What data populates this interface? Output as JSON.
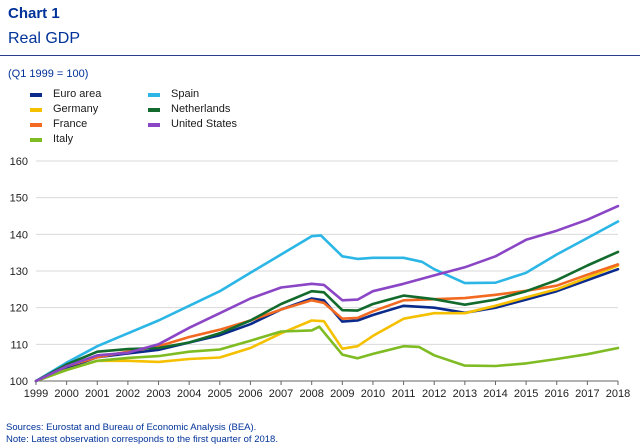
{
  "header": {
    "title": "Chart 1",
    "subtitle": "Real GDP",
    "unit_note": "(Q1 1999 = 100)"
  },
  "footer": {
    "sources": "Sources: Eurostat and Bureau of Economic Analysis (BEA).",
    "note": "Note: Latest observation corresponds to the first quarter of 2018."
  },
  "chart_data": {
    "type": "line",
    "xlim": [
      1999,
      2018
    ],
    "ylim": [
      100,
      160
    ],
    "x_ticks": [
      1999,
      2000,
      2001,
      2002,
      2003,
      2004,
      2005,
      2006,
      2007,
      2008,
      2009,
      2010,
      2011,
      2012,
      2013,
      2014,
      2015,
      2016,
      2017,
      2018
    ],
    "y_ticks": [
      100,
      110,
      120,
      130,
      140,
      150,
      160
    ],
    "grid": "horizontal",
    "legend_position": "top-left",
    "series": [
      {
        "name": "Euro area",
        "color": "#0a2a8c",
        "points": [
          [
            1999,
            100
          ],
          [
            2000,
            103.5
          ],
          [
            2001,
            106.5
          ],
          [
            2002,
            107.5
          ],
          [
            2003,
            108.5
          ],
          [
            2004,
            110.5
          ],
          [
            2005,
            112.5
          ],
          [
            2006,
            115.5
          ],
          [
            2007,
            119.5
          ],
          [
            2008,
            122.5
          ],
          [
            2008.4,
            122
          ],
          [
            2009,
            116.2
          ],
          [
            2009.5,
            116.5
          ],
          [
            2010,
            118
          ],
          [
            2011,
            120.5
          ],
          [
            2012,
            120
          ],
          [
            2013,
            118.6
          ],
          [
            2014,
            120
          ],
          [
            2015,
            122.2
          ],
          [
            2016,
            124.5
          ],
          [
            2017,
            127.5
          ],
          [
            2018,
            130.5
          ]
        ]
      },
      {
        "name": "Germany",
        "color": "#f5c000",
        "points": [
          [
            1999,
            100
          ],
          [
            2000,
            103
          ],
          [
            2001,
            105.5
          ],
          [
            2002,
            105.5
          ],
          [
            2003,
            105.2
          ],
          [
            2004,
            106
          ],
          [
            2005,
            106.4
          ],
          [
            2006,
            109
          ],
          [
            2007,
            113
          ],
          [
            2008,
            116.5
          ],
          [
            2008.4,
            116.3
          ],
          [
            2009,
            108.8
          ],
          [
            2009.5,
            109.5
          ],
          [
            2010,
            112.3
          ],
          [
            2011,
            117
          ],
          [
            2012,
            118.5
          ],
          [
            2013,
            118.5
          ],
          [
            2014,
            120.5
          ],
          [
            2015,
            122.8
          ],
          [
            2016,
            125
          ],
          [
            2017,
            128.2
          ],
          [
            2018,
            131.5
          ]
        ]
      },
      {
        "name": "France",
        "color": "#f26a21",
        "points": [
          [
            1999,
            100
          ],
          [
            2000,
            104
          ],
          [
            2001,
            106.5
          ],
          [
            2002,
            108
          ],
          [
            2003,
            109.5
          ],
          [
            2004,
            112
          ],
          [
            2005,
            114
          ],
          [
            2006,
            116.5
          ],
          [
            2007,
            119.5
          ],
          [
            2008,
            122
          ],
          [
            2008.4,
            121.3
          ],
          [
            2009,
            117
          ],
          [
            2009.5,
            117.2
          ],
          [
            2010,
            119
          ],
          [
            2011,
            122
          ],
          [
            2012,
            122.3
          ],
          [
            2013,
            122.6
          ],
          [
            2014,
            123.5
          ],
          [
            2015,
            124.6
          ],
          [
            2016,
            126
          ],
          [
            2017,
            129
          ],
          [
            2018,
            131.8
          ]
        ]
      },
      {
        "name": "Italy",
        "color": "#7fbc23",
        "points": [
          [
            1999,
            100
          ],
          [
            2000,
            103
          ],
          [
            2001,
            105.5
          ],
          [
            2002,
            106.3
          ],
          [
            2003,
            106.8
          ],
          [
            2004,
            108
          ],
          [
            2005,
            108.6
          ],
          [
            2006,
            111
          ],
          [
            2007,
            113.5
          ],
          [
            2008,
            113.8
          ],
          [
            2008.25,
            114.8
          ],
          [
            2009,
            107.2
          ],
          [
            2009.5,
            106.2
          ],
          [
            2010,
            107.4
          ],
          [
            2011,
            109.5
          ],
          [
            2011.5,
            109.3
          ],
          [
            2012,
            107
          ],
          [
            2013,
            104.2
          ],
          [
            2014,
            104.1
          ],
          [
            2015,
            104.8
          ],
          [
            2016,
            106
          ],
          [
            2017,
            107.3
          ],
          [
            2018,
            109
          ]
        ]
      },
      {
        "name": "Spain",
        "color": "#2bb6e6",
        "points": [
          [
            1999,
            100
          ],
          [
            2000,
            105
          ],
          [
            2001,
            109.5
          ],
          [
            2002,
            113
          ],
          [
            2003,
            116.5
          ],
          [
            2004,
            120.5
          ],
          [
            2005,
            124.5
          ],
          [
            2006,
            129.5
          ],
          [
            2007,
            134.5
          ],
          [
            2008,
            139.5
          ],
          [
            2008.3,
            139.7
          ],
          [
            2009,
            134
          ],
          [
            2009.5,
            133.3
          ],
          [
            2010,
            133.6
          ],
          [
            2011,
            133.6
          ],
          [
            2011.6,
            132.5
          ],
          [
            2012,
            130.5
          ],
          [
            2013,
            126.7
          ],
          [
            2014,
            126.8
          ],
          [
            2015,
            129.5
          ],
          [
            2016,
            134.5
          ],
          [
            2017,
            139
          ],
          [
            2018,
            143.5
          ]
        ]
      },
      {
        "name": "Netherlands",
        "color": "#126b2c",
        "points": [
          [
            1999,
            100
          ],
          [
            2000,
            104.5
          ],
          [
            2001,
            108
          ],
          [
            2002,
            108.7
          ],
          [
            2003,
            109
          ],
          [
            2004,
            110.5
          ],
          [
            2005,
            113
          ],
          [
            2006,
            116.5
          ],
          [
            2007,
            121
          ],
          [
            2008,
            124.5
          ],
          [
            2008.4,
            124.2
          ],
          [
            2009,
            119.3
          ],
          [
            2009.5,
            119.2
          ],
          [
            2010,
            121
          ],
          [
            2011,
            123.3
          ],
          [
            2012,
            122.3
          ],
          [
            2013,
            120.8
          ],
          [
            2014,
            122.2
          ],
          [
            2015,
            124.5
          ],
          [
            2016,
            127.5
          ],
          [
            2017,
            131.5
          ],
          [
            2018,
            135.2
          ]
        ]
      },
      {
        "name": "United States",
        "color": "#8b46c6",
        "points": [
          [
            1999,
            100
          ],
          [
            2000,
            104
          ],
          [
            2001,
            107
          ],
          [
            2002,
            107.7
          ],
          [
            2003,
            110
          ],
          [
            2004,
            114.5
          ],
          [
            2005,
            118.5
          ],
          [
            2006,
            122.5
          ],
          [
            2007,
            125.5
          ],
          [
            2008,
            126.5
          ],
          [
            2008.4,
            126.2
          ],
          [
            2009,
            122
          ],
          [
            2009.5,
            122.2
          ],
          [
            2010,
            124.5
          ],
          [
            2011,
            126.5
          ],
          [
            2012,
            128.8
          ],
          [
            2013,
            131
          ],
          [
            2014,
            134
          ],
          [
            2015,
            138.5
          ],
          [
            2016,
            141
          ],
          [
            2017,
            144
          ],
          [
            2018,
            147.7
          ]
        ]
      }
    ]
  }
}
